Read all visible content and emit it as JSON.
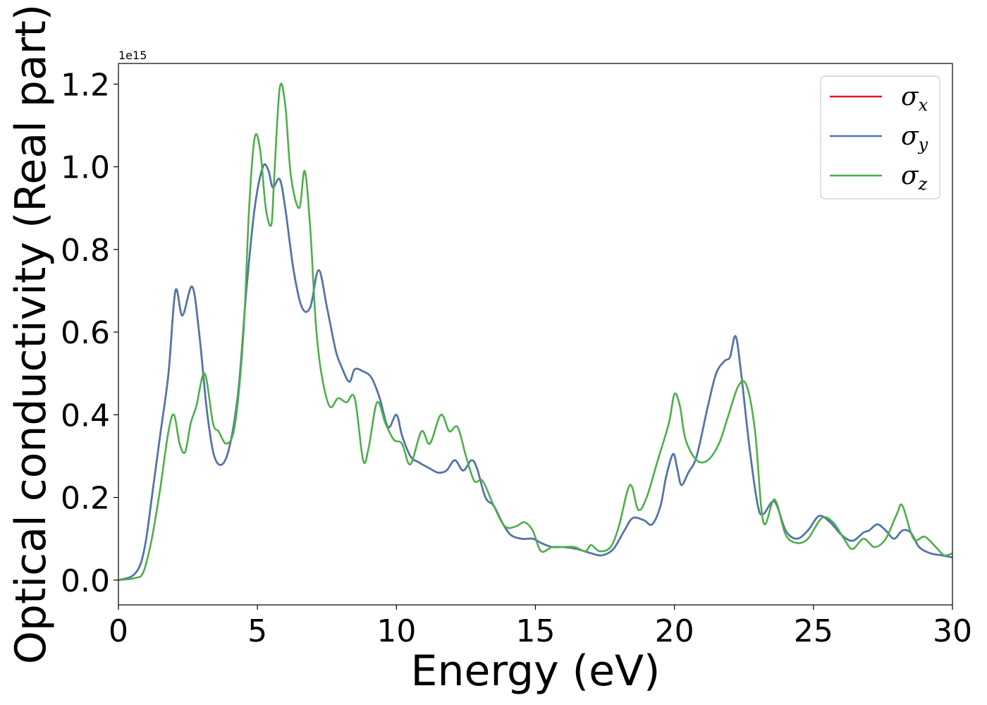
{
  "chart_data": {
    "type": "line",
    "xlabel": "Energy (eV)",
    "ylabel": "Optical conductivity (Real part)",
    "y_offset_label": "1e15",
    "xlim": [
      0,
      30
    ],
    "ylim": [
      -0.06,
      1.25
    ],
    "x_ticks": [
      0,
      5,
      10,
      15,
      20,
      25,
      30
    ],
    "x_tick_labels": [
      "0",
      "5",
      "10",
      "15",
      "20",
      "25",
      "30"
    ],
    "y_ticks": [
      0.0,
      0.2,
      0.4,
      0.6,
      0.8,
      1.0,
      1.2
    ],
    "y_tick_labels": [
      "0.0",
      "0.2",
      "0.4",
      "0.6",
      "0.8",
      "1.0",
      "1.2"
    ],
    "grid": false,
    "legend_position": "top-right",
    "series": [
      {
        "name": "σ",
        "subscript": "x",
        "color": "#e41a1c",
        "x": [
          0,
          0.5,
          0.8,
          1.0,
          1.2,
          1.5,
          1.8,
          2.05,
          2.3,
          2.65,
          2.9,
          3.2,
          3.5,
          3.9,
          4.3,
          4.6,
          4.9,
          5.2,
          5.4,
          5.55,
          5.8,
          6.0,
          6.3,
          6.6,
          6.9,
          7.2,
          7.5,
          7.8,
          8.0,
          8.3,
          8.5,
          8.8,
          9.1,
          9.4,
          9.7,
          10.0,
          10.2,
          10.5,
          10.8,
          11.2,
          11.5,
          11.8,
          12.1,
          12.4,
          12.7,
          12.9,
          13.2,
          13.5,
          13.8,
          14.1,
          14.5,
          14.9,
          15.2,
          15.6,
          16.0,
          16.5,
          17.0,
          17.4,
          17.8,
          18.2,
          18.5,
          18.9,
          19.2,
          19.5,
          19.7,
          19.95,
          20.1,
          20.25,
          20.5,
          20.8,
          21.2,
          21.5,
          21.8,
          22.0,
          22.2,
          22.4,
          22.7,
          23.0,
          23.2,
          23.6,
          24.0,
          24.4,
          24.8,
          25.2,
          25.6,
          26.0,
          26.4,
          26.8,
          27.0,
          27.3,
          27.6,
          27.9,
          28.2,
          28.5,
          28.8,
          29.2,
          29.6,
          30.0
        ],
        "values": [
          0.0,
          0.01,
          0.04,
          0.1,
          0.2,
          0.35,
          0.5,
          0.7,
          0.64,
          0.71,
          0.6,
          0.4,
          0.29,
          0.3,
          0.45,
          0.7,
          0.9,
          1.0,
          0.99,
          0.95,
          0.97,
          0.9,
          0.75,
          0.66,
          0.66,
          0.75,
          0.66,
          0.56,
          0.52,
          0.48,
          0.51,
          0.505,
          0.49,
          0.44,
          0.37,
          0.4,
          0.35,
          0.3,
          0.285,
          0.27,
          0.26,
          0.265,
          0.29,
          0.265,
          0.29,
          0.27,
          0.2,
          0.18,
          0.14,
          0.11,
          0.1,
          0.1,
          0.09,
          0.08,
          0.08,
          0.075,
          0.065,
          0.06,
          0.075,
          0.12,
          0.15,
          0.145,
          0.135,
          0.18,
          0.25,
          0.305,
          0.27,
          0.23,
          0.26,
          0.3,
          0.42,
          0.5,
          0.53,
          0.54,
          0.59,
          0.5,
          0.32,
          0.18,
          0.16,
          0.19,
          0.12,
          0.1,
          0.12,
          0.155,
          0.14,
          0.11,
          0.095,
          0.115,
          0.12,
          0.135,
          0.12,
          0.1,
          0.12,
          0.115,
          0.08,
          0.065,
          0.06,
          0.055
        ]
      },
      {
        "name": "σ",
        "subscript": "y",
        "color": "#4a78b0",
        "x": [
          0,
          0.5,
          0.8,
          1.0,
          1.2,
          1.5,
          1.8,
          2.05,
          2.3,
          2.65,
          2.9,
          3.2,
          3.5,
          3.9,
          4.3,
          4.6,
          4.9,
          5.2,
          5.4,
          5.55,
          5.8,
          6.0,
          6.3,
          6.6,
          6.9,
          7.2,
          7.5,
          7.8,
          8.0,
          8.3,
          8.5,
          8.8,
          9.1,
          9.4,
          9.7,
          10.0,
          10.2,
          10.5,
          10.8,
          11.2,
          11.5,
          11.8,
          12.1,
          12.4,
          12.7,
          12.9,
          13.2,
          13.5,
          13.8,
          14.1,
          14.5,
          14.9,
          15.2,
          15.6,
          16.0,
          16.5,
          17.0,
          17.4,
          17.8,
          18.2,
          18.5,
          18.9,
          19.2,
          19.5,
          19.7,
          19.95,
          20.1,
          20.25,
          20.5,
          20.8,
          21.2,
          21.5,
          21.8,
          22.0,
          22.2,
          22.4,
          22.7,
          23.0,
          23.2,
          23.6,
          24.0,
          24.4,
          24.8,
          25.2,
          25.6,
          26.0,
          26.4,
          26.8,
          27.0,
          27.3,
          27.6,
          27.9,
          28.2,
          28.5,
          28.8,
          29.2,
          29.6,
          30.0
        ],
        "values": [
          0.0,
          0.01,
          0.04,
          0.1,
          0.2,
          0.35,
          0.5,
          0.7,
          0.64,
          0.71,
          0.6,
          0.4,
          0.29,
          0.3,
          0.45,
          0.7,
          0.9,
          1.0,
          0.99,
          0.95,
          0.97,
          0.9,
          0.75,
          0.66,
          0.66,
          0.75,
          0.66,
          0.56,
          0.52,
          0.48,
          0.51,
          0.505,
          0.49,
          0.44,
          0.37,
          0.4,
          0.35,
          0.3,
          0.285,
          0.27,
          0.26,
          0.265,
          0.29,
          0.265,
          0.29,
          0.27,
          0.2,
          0.18,
          0.14,
          0.11,
          0.1,
          0.1,
          0.09,
          0.08,
          0.08,
          0.075,
          0.065,
          0.06,
          0.075,
          0.12,
          0.15,
          0.145,
          0.135,
          0.18,
          0.25,
          0.305,
          0.27,
          0.23,
          0.26,
          0.3,
          0.42,
          0.5,
          0.53,
          0.54,
          0.59,
          0.5,
          0.32,
          0.18,
          0.16,
          0.19,
          0.12,
          0.1,
          0.12,
          0.155,
          0.14,
          0.11,
          0.095,
          0.115,
          0.12,
          0.135,
          0.12,
          0.1,
          0.12,
          0.115,
          0.08,
          0.065,
          0.06,
          0.055
        ]
      },
      {
        "name": "σ",
        "subscript": "z",
        "color": "#4daf4a",
        "x": [
          0,
          0.6,
          0.9,
          1.2,
          1.5,
          1.8,
          2.0,
          2.2,
          2.4,
          2.6,
          2.8,
          3.1,
          3.4,
          3.6,
          3.9,
          4.2,
          4.5,
          4.7,
          4.9,
          5.1,
          5.3,
          5.5,
          5.6,
          5.8,
          6.0,
          6.2,
          6.5,
          6.7,
          6.9,
          7.1,
          7.3,
          7.6,
          7.9,
          8.2,
          8.5,
          8.8,
          9.0,
          9.3,
          9.6,
          9.9,
          10.2,
          10.5,
          10.9,
          11.2,
          11.6,
          11.9,
          12.2,
          12.5,
          12.8,
          13.1,
          13.5,
          13.9,
          14.3,
          14.6,
          14.9,
          15.2,
          15.6,
          16.0,
          16.4,
          16.8,
          17.0,
          17.3,
          17.7,
          18.0,
          18.4,
          18.7,
          19.0,
          19.4,
          19.8,
          20.0,
          20.2,
          20.4,
          20.8,
          21.2,
          21.6,
          21.9,
          22.3,
          22.6,
          22.9,
          23.2,
          23.6,
          24.0,
          24.4,
          24.8,
          25.3,
          25.7,
          26.1,
          26.4,
          26.8,
          27.2,
          27.6,
          28.0,
          28.2,
          28.6,
          29.0,
          29.4,
          29.7,
          30.0
        ],
        "values": [
          0.0,
          0.005,
          0.02,
          0.1,
          0.22,
          0.36,
          0.4,
          0.33,
          0.31,
          0.38,
          0.42,
          0.5,
          0.38,
          0.36,
          0.33,
          0.38,
          0.6,
          0.9,
          1.07,
          1.04,
          0.9,
          0.86,
          0.97,
          1.19,
          1.15,
          0.98,
          0.9,
          0.99,
          0.85,
          0.62,
          0.5,
          0.42,
          0.44,
          0.43,
          0.44,
          0.29,
          0.32,
          0.43,
          0.38,
          0.34,
          0.33,
          0.28,
          0.36,
          0.33,
          0.4,
          0.36,
          0.37,
          0.3,
          0.24,
          0.24,
          0.18,
          0.13,
          0.13,
          0.14,
          0.12,
          0.07,
          0.08,
          0.08,
          0.08,
          0.07,
          0.085,
          0.07,
          0.08,
          0.13,
          0.23,
          0.17,
          0.2,
          0.29,
          0.38,
          0.45,
          0.42,
          0.34,
          0.29,
          0.29,
          0.33,
          0.39,
          0.47,
          0.47,
          0.36,
          0.14,
          0.195,
          0.11,
          0.09,
          0.1,
          0.15,
          0.14,
          0.1,
          0.075,
          0.1,
          0.08,
          0.1,
          0.16,
          0.18,
          0.1,
          0.105,
          0.08,
          0.06,
          0.065
        ]
      }
    ]
  }
}
